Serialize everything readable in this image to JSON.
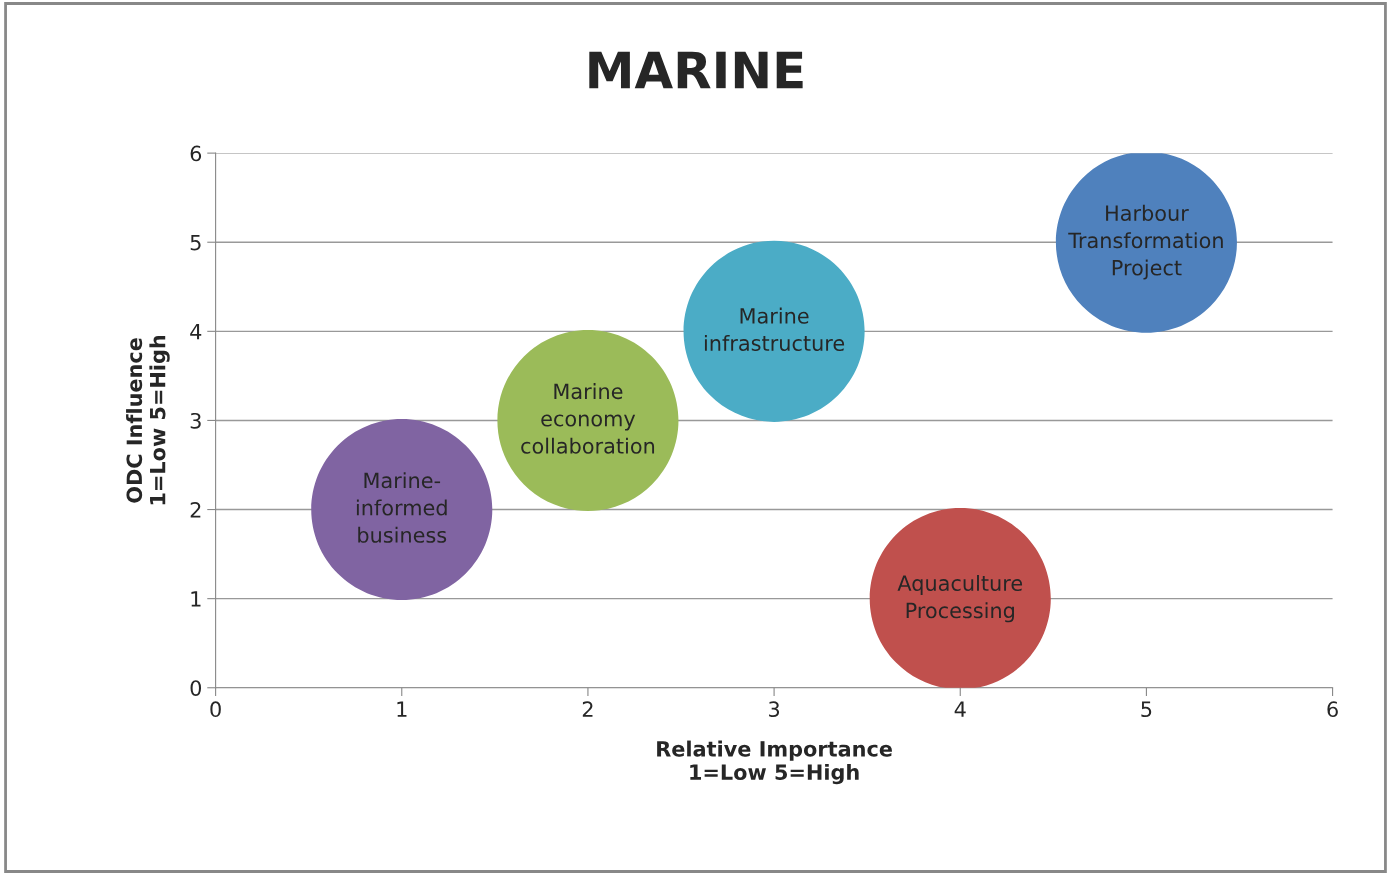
{
  "chart_data": {
    "type": "bubble",
    "title": "MARINE",
    "xlabel": "Relative Importance\n1=Low 5=High",
    "ylabel": "ODC Influence\n1=Low 5=High",
    "x": [
      1,
      2,
      3,
      4,
      5
    ],
    "values": [
      2,
      3,
      4,
      1,
      5
    ],
    "sizes": [
      1,
      1,
      1,
      1,
      1
    ],
    "colors": [
      "#8064a2",
      "#9bbb59",
      "#4bacc6",
      "#c0504d",
      "#4f81bd"
    ],
    "annotations": [
      {
        "text": "Marine-\ninformed\nbusiness",
        "x": 1,
        "y": 2
      },
      {
        "text": "Marine\neconomy\ncollaboration",
        "x": 2,
        "y": 3
      },
      {
        "text": "Marine\ninfrastructure",
        "x": 3,
        "y": 4
      },
      {
        "text": "Aquaculture\nProcessing",
        "x": 4,
        "y": 1
      },
      {
        "text": "Harbour\nTransformation\nProject",
        "x": 5,
        "y": 5
      }
    ],
    "xlim": [
      0,
      6
    ],
    "xticks": [
      0,
      1,
      2,
      3,
      4,
      5,
      6
    ],
    "ylim": [
      0,
      6
    ],
    "yticks": [
      0,
      1,
      2,
      3,
      4,
      5,
      6
    ],
    "grid": "y",
    "legend": false
  }
}
